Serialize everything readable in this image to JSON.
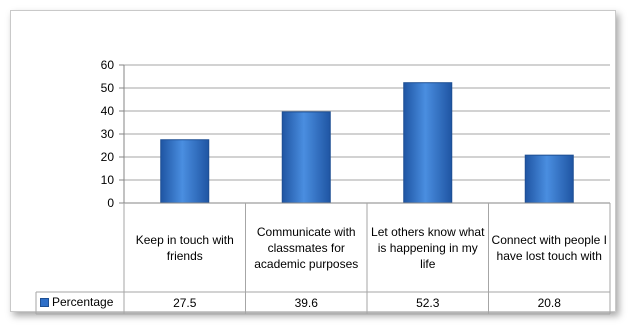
{
  "chart_data": {
    "type": "bar",
    "categories": [
      "Keep in touch with friends",
      "Communicate with classmates for academic purposes",
      "Let others know what is happening in my life",
      "Connect with people I have lost touch with"
    ],
    "series": [
      {
        "name": "Percentage",
        "values": [
          27.5,
          39.6,
          52.3,
          20.8
        ]
      }
    ],
    "value_labels": [
      "27.5",
      "39.6",
      "52.3",
      "20.8"
    ],
    "yticks": [
      "0",
      "10",
      "20",
      "30",
      "40",
      "50",
      "60"
    ],
    "ylim": [
      0,
      60
    ],
    "grid": true,
    "legend": "data-table-left",
    "colors": {
      "bar": "#2e6fc8",
      "bar_dark": "#1d4f93",
      "grid": "#a6a6a6"
    }
  }
}
